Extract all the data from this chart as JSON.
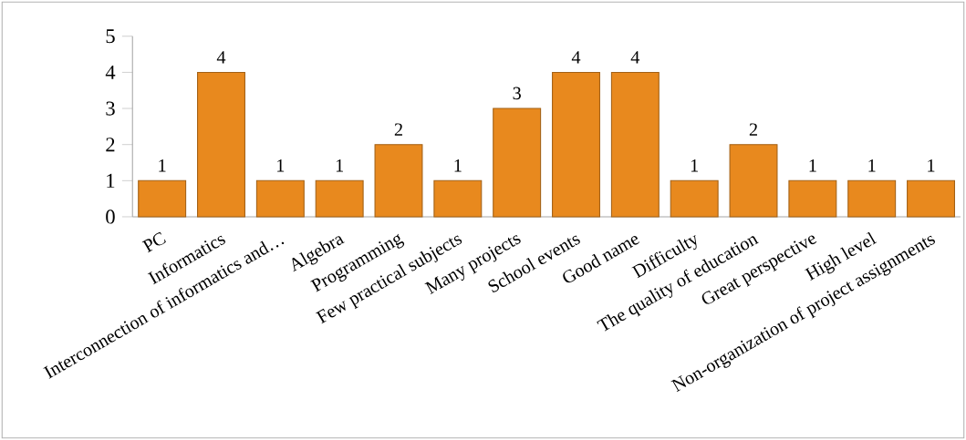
{
  "chart_data": {
    "type": "bar",
    "categories": [
      "PC",
      "Informatics",
      "Interconnection of informatics and…",
      "Algebra",
      "Programming",
      "Few practical subjects",
      "Many projects",
      "School events",
      "Good name",
      "Difficulty",
      "The quality of education",
      "Great perspective",
      "High level",
      "Non-organization of project assignments"
    ],
    "values": [
      1,
      4,
      1,
      1,
      2,
      1,
      3,
      4,
      4,
      1,
      2,
      1,
      1,
      1
    ],
    "color": "#e8891e",
    "ylim": [
      0,
      5
    ],
    "yticks": [
      0,
      1,
      2,
      3,
      4,
      5
    ],
    "data_labels": true,
    "grid": false
  }
}
